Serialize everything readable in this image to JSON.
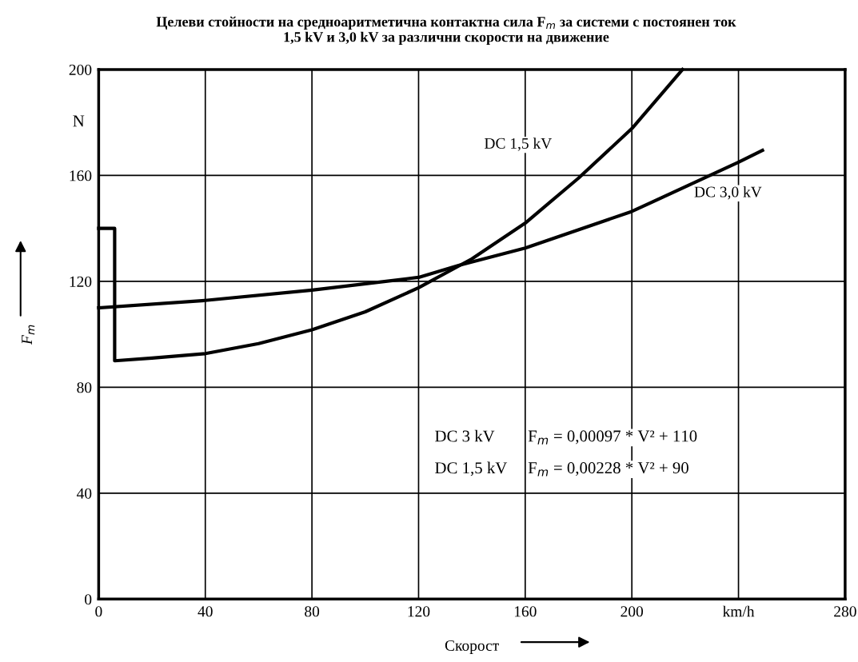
{
  "chart_data": {
    "type": "line",
    "title": "Целеви стойности на средноаритметична контактна сила F$_{m}$ за системи с постоянен ток\n1,5 kV и 3,0 kV за различни скорости на движение",
    "xlabel": "Скорост",
    "ylabel": "F$_{m}$",
    "series": [
      {
        "name": "DC 1,5 kV",
        "color": "#000000",
        "x": [
          0,
          6,
          6,
          20,
          40,
          60,
          80,
          100,
          120,
          140,
          160,
          180,
          200,
          219
        ],
        "values": [
          140,
          140,
          90,
          91,
          92.7,
          96.5,
          101.7,
          108.5,
          117.6,
          128.5,
          142,
          159,
          177.7,
          200
        ]
      },
      {
        "name": "DC 3,0 kV",
        "color": "#000000",
        "x": [
          0,
          40,
          80,
          120,
          135,
          160,
          200,
          240,
          249
        ],
        "values": [
          110,
          112.8,
          116.7,
          121.5,
          126,
          132.6,
          146.4,
          165,
          169.5
        ]
      }
    ],
    "annotations": [
      "N",
      "DC 3 kV",
      "F$_{m}$ = 0,00097 * V² + 110",
      "DC 1,5 kV",
      "F$_{m}$ = 0,00228 * V² + 90"
    ],
    "xlim": [
      0,
      280
    ],
    "xticks": [
      0,
      40,
      80,
      120,
      160,
      200,
      {
        "value": 240,
        "label": "km/h"
      },
      280
    ],
    "ylim": [
      0,
      200
    ],
    "yticks": [
      0,
      40,
      80,
      120,
      160,
      200
    ],
    "grid": true,
    "line_style": "solid",
    "marker": "none"
  }
}
